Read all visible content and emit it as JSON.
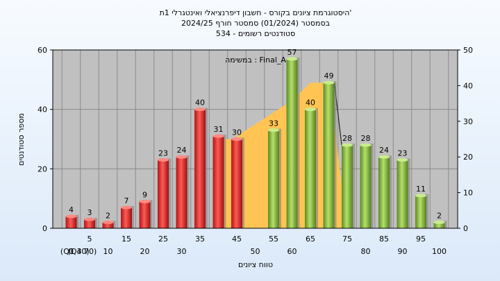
{
  "chart_data": {
    "type": "bar",
    "title_lines": [
      "היסטוגרמת ציונים בקורס - חשבון דיפרנציאלי ואינטגרלי 1ת'",
      "בסמסטר  (01/2024)  סמסטר חורף  2024/25",
      "534 - סטודנטים רשומים"
    ],
    "xlabel": "טווח ציונים",
    "ylabel": "מספר סטודנטים",
    "ylim": [
      0,
      60
    ],
    "y2lim": [
      0,
      50
    ],
    "y_ticks": [
      "0",
      "20",
      "40",
      "60"
    ],
    "y2_ticks": [
      "0",
      "10",
      "20",
      "30",
      "40",
      "50"
    ],
    "x_ticks_row1": [
      "5",
      "15",
      "25",
      "35",
      "45",
      "55",
      "65",
      "75",
      "85",
      "95"
    ],
    "x_ticks_row2": [
      "0",
      "10",
      "20",
      "30",
      "(Q1 40)",
      "50",
      "60",
      "(Q3 70)",
      "80",
      "90",
      "100"
    ],
    "annotation": "במשימה : Final_A",
    "grid": true,
    "bars": [
      {
        "x": 0,
        "value": 4,
        "label": "4",
        "color": "#e8332f"
      },
      {
        "x": 5,
        "value": 3,
        "label": "3",
        "color": "#e8332f"
      },
      {
        "x": 10,
        "value": 2,
        "label": "2",
        "color": "#e8332f"
      },
      {
        "x": 15,
        "value": 7,
        "label": "7",
        "color": "#e8332f"
      },
      {
        "x": 20,
        "value": 9,
        "label": "9",
        "color": "#e8332f"
      },
      {
        "x": 25,
        "value": 23,
        "label": "23",
        "color": "#e8332f"
      },
      {
        "x": 30,
        "value": 24,
        "label": "24",
        "color": "#e8332f"
      },
      {
        "x": 35,
        "value": 40,
        "label": "40",
        "color": "#e8332f"
      },
      {
        "x": 40,
        "value": 31,
        "label": "31",
        "color": "#e8332f"
      },
      {
        "x": 45,
        "value": 30,
        "label": "30",
        "color": "#e8332f"
      },
      {
        "x": 55,
        "value": 33,
        "label": "33",
        "color": "#8cc43f"
      },
      {
        "x": 60,
        "value": 57,
        "label": "57",
        "color": "#8cc43f"
      },
      {
        "x": 65,
        "value": 40,
        "label": "40",
        "color": "#8cc43f"
      },
      {
        "x": 70,
        "value": 49,
        "label": "49",
        "color": "#8cc43f"
      },
      {
        "x": 75,
        "value": 28,
        "label": "28",
        "color": "#8cc43f"
      },
      {
        "x": 80,
        "value": 28,
        "label": "28",
        "color": "#8cc43f"
      },
      {
        "x": 85,
        "value": 24,
        "label": "24",
        "color": "#8cc43f"
      },
      {
        "x": 90,
        "value": 23,
        "label": "23",
        "color": "#8cc43f"
      },
      {
        "x": 95,
        "value": 11,
        "label": "11",
        "color": "#8cc43f"
      },
      {
        "x": 100,
        "value": 2,
        "label": "2",
        "color": "#8cc43f"
      }
    ],
    "area": {
      "color": "#ffc453",
      "points": [
        [
          40,
          0
        ],
        [
          40,
          30
        ],
        [
          45,
          30
        ],
        [
          45,
          31
        ],
        [
          55,
          39
        ],
        [
          60,
          43
        ],
        [
          65,
          49
        ],
        [
          70,
          49
        ],
        [
          75,
          0
        ]
      ]
    },
    "line_segment": {
      "color": "#222222",
      "points": [
        [
          70,
          49
        ],
        [
          75,
          28
        ]
      ]
    },
    "colors": {
      "plot_background": "#c0c0c0",
      "grid": "#8a8a8a",
      "page_background": "#e9f2fc"
    }
  }
}
